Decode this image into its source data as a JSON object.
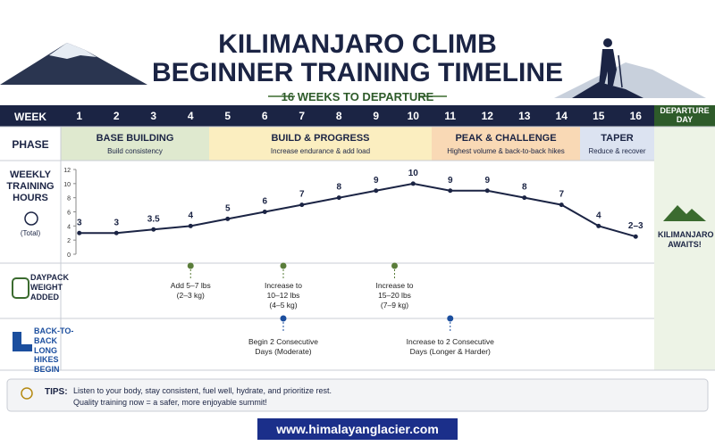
{
  "header": {
    "title_line1": "KILIMANJARO CLIMB",
    "title_line2": "BEGINNER TRAINING TIMELINE",
    "subtitle": "16 WEEKS TO DEPARTURE"
  },
  "table": {
    "week_label": "WEEK",
    "departure": "DEPARTURE DAY",
    "departure_note": "KILIMANJARO AWAITS!",
    "phase_label": "PHASE",
    "phases": [
      {
        "name": "BASE BUILDING",
        "desc": "Build consistency"
      },
      {
        "name": "BUILD & PROGRESS",
        "desc": "Increase endurance & add load"
      },
      {
        "name": "PEAK & CHALLENGE",
        "desc": "Highest volume & back-to-back hikes"
      },
      {
        "name": "TAPER",
        "desc": "Reduce & recover"
      }
    ]
  },
  "chart_data": {
    "type": "line",
    "title": "WEEKLY TRAINING HOURS",
    "subtitle": "(Total)",
    "categories": [
      "1",
      "2",
      "3",
      "4",
      "5",
      "6",
      "7",
      "8",
      "9",
      "10",
      "11",
      "12",
      "13",
      "14",
      "15",
      "16"
    ],
    "series": [
      {
        "values": [
          3,
          3,
          3.5,
          4,
          5,
          6,
          7,
          8,
          9,
          10,
          9,
          9,
          8,
          7,
          4,
          2.5
        ],
        "value_labels": [
          "3",
          "3",
          "3.5",
          "4",
          "5",
          "6",
          "7",
          "8",
          "9",
          "10",
          "9",
          "9",
          "8",
          "7",
          "4",
          "2–3"
        ],
        "color": "#1b2444"
      }
    ],
    "ylim": [
      0,
      12
    ],
    "yticks": [
      0,
      2,
      4,
      6,
      8,
      10,
      12
    ]
  },
  "daypack": {
    "label": "DAYPACK WEIGHT ADDED",
    "notes": [
      [
        "Add 5–7 lbs",
        "(2–3 kg)"
      ],
      [
        "Increase to",
        "10–12 lbs",
        "(4–5 kg)"
      ],
      [
        "Increase to",
        "15–20 lbs",
        "(7–9 kg)"
      ]
    ]
  },
  "hikes": {
    "label": "BACK-TO-BACK LONG HIKES BEGIN",
    "notes": [
      [
        "Begin 2 Consecutive",
        "Days (Moderate)"
      ],
      [
        "Increase to 2 Consecutive",
        "Days (Longer & Harder)"
      ]
    ]
  },
  "tips": {
    "label": "TIPS:",
    "lines": [
      "Listen to your body, stay consistent, fuel well, hydrate, and prioritize rest.",
      "Quality training now = a safer, more enjoyable summit!"
    ]
  },
  "footer": "www.himalayanglacier.com"
}
